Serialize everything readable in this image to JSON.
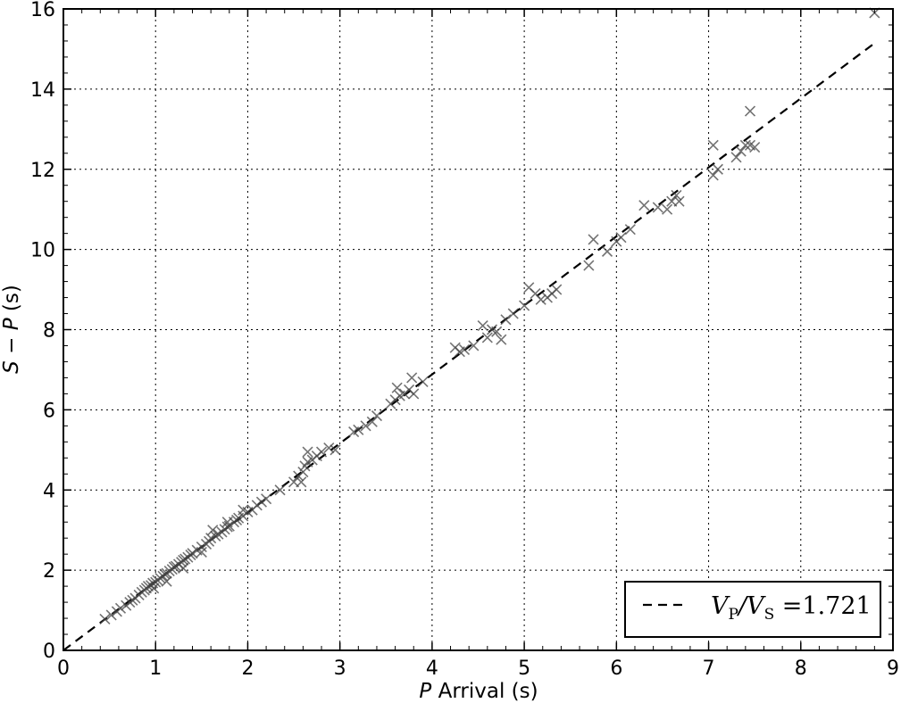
{
  "chart_data": {
    "type": "scatter",
    "xlabel_var": "P",
    "xlabel_rest": " Arrival (s)",
    "ylabel_a": "S",
    "ylabel_minus": " − ",
    "ylabel_b": "P",
    "ylabel_rest": " (s)",
    "xlim": [
      0,
      9
    ],
    "ylim": [
      0,
      16
    ],
    "xticks": [
      "0",
      "1",
      "2",
      "3",
      "4",
      "5",
      "6",
      "7",
      "8",
      "9"
    ],
    "yticks": [
      "0",
      "2",
      "4",
      "6",
      "8",
      "10",
      "12",
      "14",
      "16"
    ],
    "grid": true,
    "legend_location": "lower-right",
    "fit_line": {
      "slope": 1.721,
      "style": "dashed",
      "color": "#000000",
      "legend_prefix": "V",
      "legend_sub1": "P",
      "legend_mid": "/V",
      "legend_sub2": "S",
      "legend_value": " =1.721"
    },
    "marker": {
      "shape": "x",
      "color": "#444444"
    },
    "points": [
      [
        0.45,
        0.78
      ],
      [
        0.52,
        0.88
      ],
      [
        0.58,
        0.97
      ],
      [
        0.62,
        1.05
      ],
      [
        0.68,
        1.12
      ],
      [
        0.72,
        1.2
      ],
      [
        0.75,
        1.25
      ],
      [
        0.78,
        1.3
      ],
      [
        0.82,
        1.38
      ],
      [
        0.85,
        1.45
      ],
      [
        0.88,
        1.5
      ],
      [
        0.9,
        1.55
      ],
      [
        0.92,
        1.6
      ],
      [
        0.95,
        1.62
      ],
      [
        0.97,
        1.68
      ],
      [
        1.0,
        1.7
      ],
      [
        1.02,
        1.75
      ],
      [
        1.05,
        1.8
      ],
      [
        1.08,
        1.85
      ],
      [
        1.1,
        1.9
      ],
      [
        1.12,
        1.92
      ],
      [
        1.15,
        1.98
      ],
      [
        1.18,
        2.02
      ],
      [
        1.2,
        2.08
      ],
      [
        1.22,
        2.1
      ],
      [
        1.25,
        2.15
      ],
      [
        1.28,
        2.2
      ],
      [
        1.3,
        2.25
      ],
      [
        1.32,
        2.28
      ],
      [
        1.35,
        2.32
      ],
      [
        1.38,
        2.38
      ],
      [
        1.4,
        2.42
      ],
      [
        1.45,
        2.5
      ],
      [
        1.5,
        2.58
      ],
      [
        1.55,
        2.65
      ],
      [
        1.58,
        2.72
      ],
      [
        1.6,
        2.8
      ],
      [
        1.65,
        2.85
      ],
      [
        1.68,
        2.9
      ],
      [
        1.72,
        2.95
      ],
      [
        1.75,
        3.02
      ],
      [
        1.78,
        3.08
      ],
      [
        1.8,
        3.1
      ],
      [
        1.85,
        3.2
      ],
      [
        1.88,
        3.25
      ],
      [
        1.9,
        3.3
      ],
      [
        1.95,
        3.35
      ],
      [
        2.0,
        3.45
      ],
      [
        2.05,
        3.5
      ],
      [
        2.1,
        3.62
      ],
      [
        2.15,
        3.7
      ],
      [
        2.2,
        3.78
      ],
      [
        0.98,
        1.55
      ],
      [
        1.12,
        1.72
      ],
      [
        1.3,
        2.05
      ],
      [
        1.5,
        2.45
      ],
      [
        1.62,
        3.0
      ],
      [
        1.78,
        3.2
      ],
      [
        1.95,
        3.5
      ],
      [
        2.35,
        4.0
      ],
      [
        2.5,
        4.2
      ],
      [
        2.55,
        4.35
      ],
      [
        2.6,
        4.45
      ],
      [
        2.62,
        4.6
      ],
      [
        2.65,
        4.7
      ],
      [
        2.7,
        4.75
      ],
      [
        2.75,
        4.85
      ],
      [
        2.8,
        4.95
      ],
      [
        2.88,
        5.05
      ],
      [
        2.95,
        5.0
      ],
      [
        2.58,
        4.2
      ],
      [
        2.65,
        4.95
      ],
      [
        3.15,
        5.45
      ],
      [
        3.2,
        5.5
      ],
      [
        3.28,
        5.6
      ],
      [
        3.35,
        5.7
      ],
      [
        3.4,
        5.85
      ],
      [
        3.55,
        6.15
      ],
      [
        3.6,
        6.25
      ],
      [
        3.65,
        6.35
      ],
      [
        3.7,
        6.4
      ],
      [
        3.75,
        6.5
      ],
      [
        3.78,
        6.8
      ],
      [
        3.8,
        6.4
      ],
      [
        3.9,
        6.7
      ],
      [
        3.62,
        6.55
      ],
      [
        4.25,
        7.55
      ],
      [
        4.3,
        7.45
      ],
      [
        4.35,
        7.5
      ],
      [
        4.45,
        7.6
      ],
      [
        4.55,
        8.1
      ],
      [
        4.6,
        7.8
      ],
      [
        4.65,
        8.0
      ],
      [
        4.7,
        7.95
      ],
      [
        4.75,
        7.75
      ],
      [
        4.8,
        8.25
      ],
      [
        4.88,
        8.4
      ],
      [
        5.0,
        8.6
      ],
      [
        5.05,
        9.05
      ],
      [
        5.12,
        8.9
      ],
      [
        5.18,
        8.75
      ],
      [
        5.25,
        8.8
      ],
      [
        5.3,
        8.9
      ],
      [
        5.35,
        9.0
      ],
      [
        5.7,
        9.6
      ],
      [
        5.75,
        10.25
      ],
      [
        5.9,
        9.95
      ],
      [
        6.0,
        10.2
      ],
      [
        6.05,
        10.3
      ],
      [
        6.15,
        10.5
      ],
      [
        6.3,
        11.1
      ],
      [
        6.45,
        11.05
      ],
      [
        6.55,
        11.0
      ],
      [
        6.6,
        11.2
      ],
      [
        6.65,
        11.35
      ],
      [
        6.68,
        11.2
      ],
      [
        7.05,
        12.6
      ],
      [
        7.05,
        11.85
      ],
      [
        7.1,
        12.0
      ],
      [
        7.3,
        12.3
      ],
      [
        7.35,
        12.45
      ],
      [
        7.4,
        12.6
      ],
      [
        7.45,
        13.45
      ],
      [
        7.45,
        12.6
      ],
      [
        7.5,
        12.55
      ],
      [
        8.8,
        15.9
      ]
    ]
  }
}
